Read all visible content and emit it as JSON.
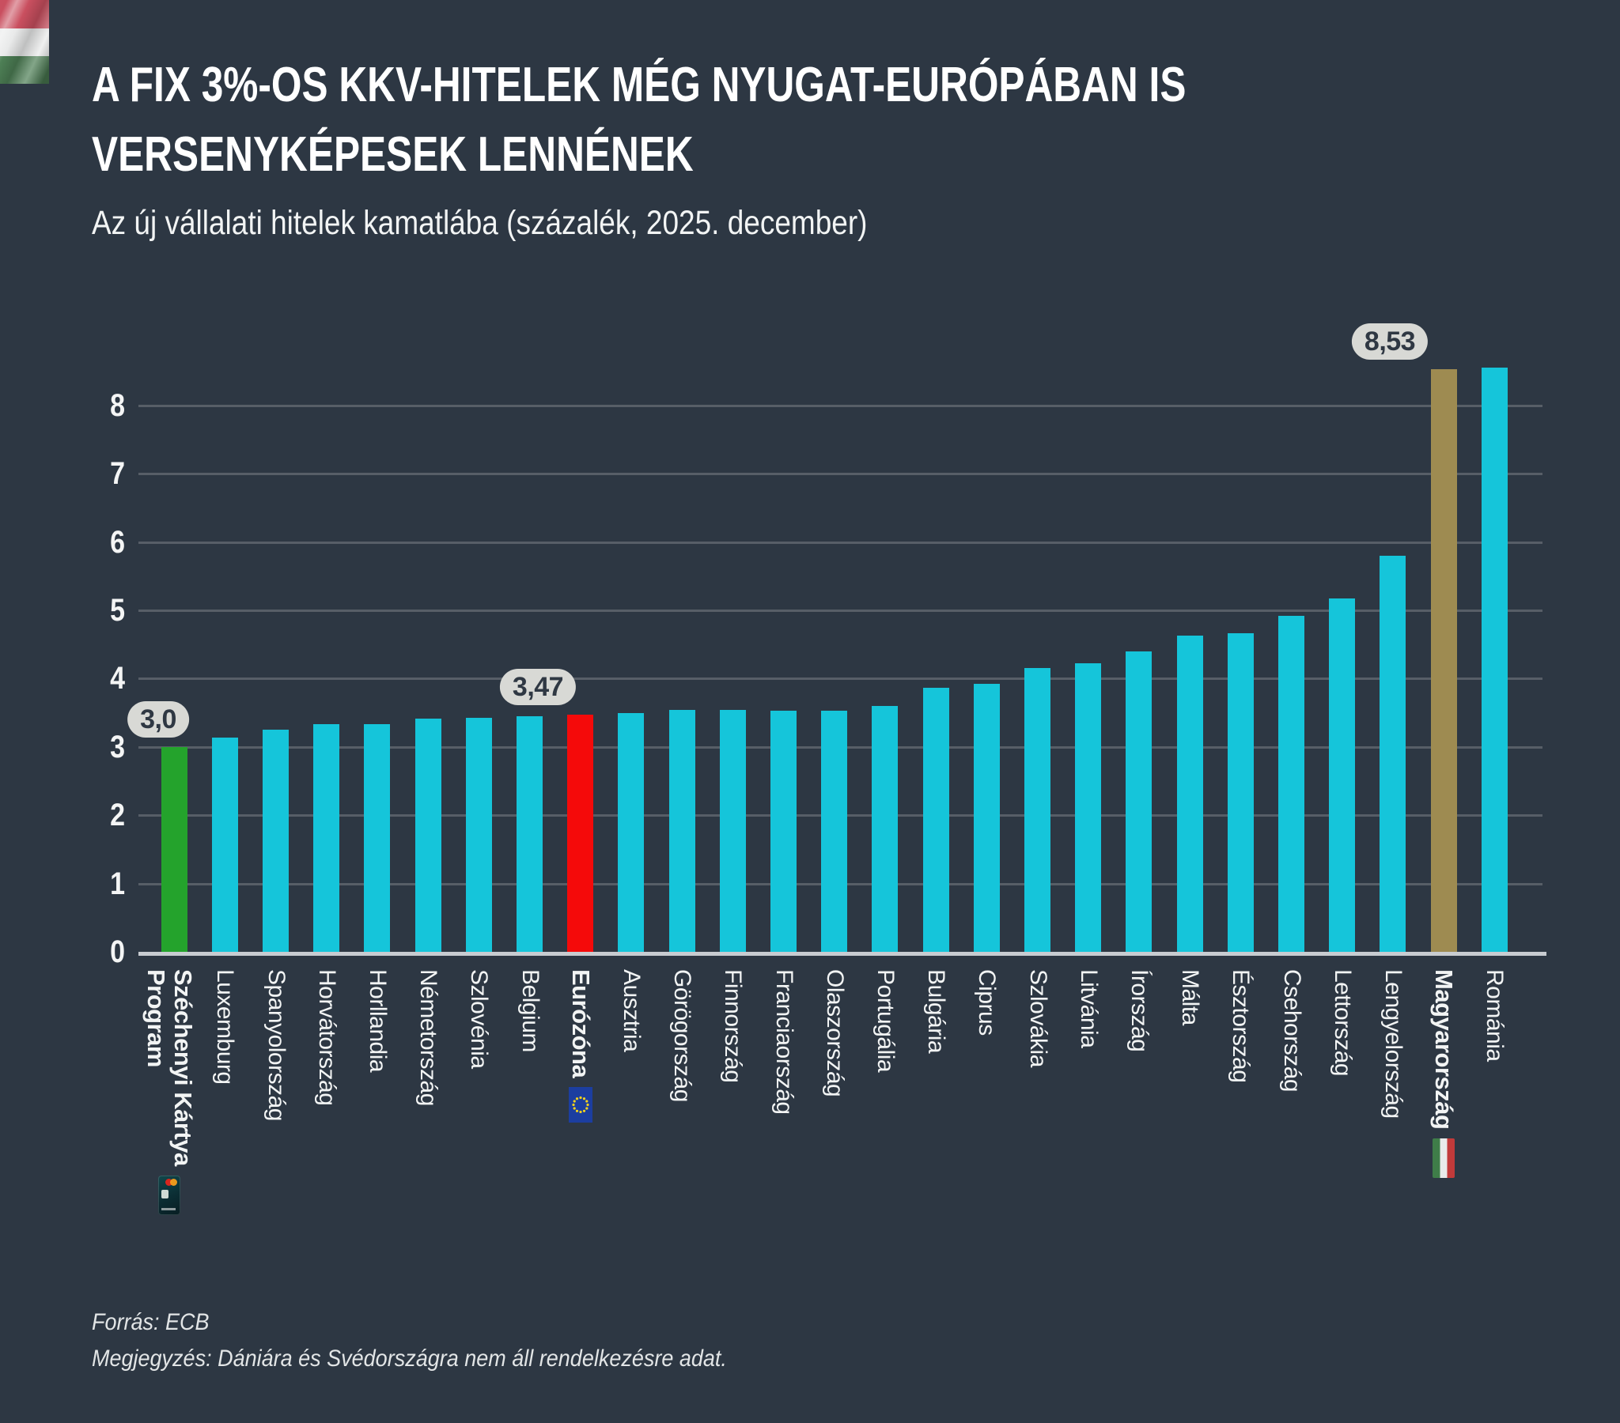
{
  "logo": {
    "name": "hungary-flag-logo"
  },
  "header": {
    "title_line1": "A FIX 3%-OS KKV-HITELEK MÉG NYUGAT-EURÓPÁBAN IS",
    "title_line2": "VERSENYKÉPESEK LENNÉNEK",
    "subtitle": "Az új vállalati hitelek kamatlába (százalék, 2025. december)"
  },
  "footer": {
    "source": "Forrás: ECB",
    "note": "Megjegyzés: Dániára és Svédországra nem áll rendelkezésre adat."
  },
  "chart_data": {
    "type": "bar",
    "title": "A fix 3%-os KKV-hitelek még Nyugat-Európában is versenyképesek lennének",
    "subtitle": "Az új vállalati hitelek kamatlába (százalék, 2025. december)",
    "xlabel": "",
    "ylabel": "",
    "unit": "percent",
    "ylim": [
      0,
      8.6
    ],
    "yticks": [
      0,
      1,
      2,
      3,
      4,
      5,
      6,
      7,
      8
    ],
    "grid": true,
    "legend": false,
    "background": "#2d3743",
    "palette": {
      "cyan": "#15c5da",
      "green": "#24a32c",
      "red": "#f50a0a",
      "gold": "#9e8b51",
      "badge_bg": "#d8d9d5",
      "badge_text": "#2f3843",
      "gridline": "#575e67",
      "axis": "#c8ccd1"
    },
    "categories": [
      "Széchenyi Kártya Program",
      "Luxemburg",
      "Spanyolország",
      "Horvátország",
      "Horllandia",
      "Németország",
      "Szlovénia",
      "Belgium",
      "Eurózóna",
      "Ausztria",
      "Görögország",
      "Finnország",
      "Franciaország",
      "Olaszország",
      "Portugália",
      "Bulgária",
      "Ciprus",
      "Szlovákia",
      "Litvánia",
      "Írország",
      "Málta",
      "Észtország",
      "Csehország",
      "Lettország",
      "Lengyelország",
      "Magyarország",
      "Románia"
    ],
    "values": [
      3.0,
      3.14,
      3.25,
      3.33,
      3.33,
      3.41,
      3.43,
      3.45,
      3.47,
      3.49,
      3.54,
      3.54,
      3.53,
      3.53,
      3.6,
      3.87,
      3.92,
      4.15,
      4.22,
      4.4,
      4.63,
      4.66,
      4.92,
      5.17,
      5.8,
      8.53,
      8.55
    ],
    "bars": [
      {
        "label": "Széchenyi Kártya\nProgram",
        "value": 3.0,
        "color": "green",
        "bold": true,
        "badge": "3,0",
        "icon": "szechenyi-card"
      },
      {
        "label": "Luxemburg",
        "value": 3.14,
        "color": "cyan",
        "bold": false,
        "badge": null,
        "icon": null
      },
      {
        "label": "Spanyolország",
        "value": 3.25,
        "color": "cyan",
        "bold": false,
        "badge": null,
        "icon": null
      },
      {
        "label": "Horvátország",
        "value": 3.33,
        "color": "cyan",
        "bold": false,
        "badge": null,
        "icon": null
      },
      {
        "label": "Horllandia",
        "value": 3.33,
        "color": "cyan",
        "bold": false,
        "badge": null,
        "icon": null
      },
      {
        "label": "Németország",
        "value": 3.41,
        "color": "cyan",
        "bold": false,
        "badge": null,
        "icon": null
      },
      {
        "label": "Szlovénia",
        "value": 3.43,
        "color": "cyan",
        "bold": false,
        "badge": null,
        "icon": null
      },
      {
        "label": "Belgium",
        "value": 3.45,
        "color": "cyan",
        "bold": false,
        "badge": null,
        "icon": null
      },
      {
        "label": "Eurózóna",
        "value": 3.47,
        "color": "red",
        "bold": true,
        "badge": "3,47",
        "icon": "eu-flag"
      },
      {
        "label": "Ausztria",
        "value": 3.49,
        "color": "cyan",
        "bold": false,
        "badge": null,
        "icon": null
      },
      {
        "label": "Görögország",
        "value": 3.54,
        "color": "cyan",
        "bold": false,
        "badge": null,
        "icon": null
      },
      {
        "label": "Finnország",
        "value": 3.54,
        "color": "cyan",
        "bold": false,
        "badge": null,
        "icon": null
      },
      {
        "label": "Franciaország",
        "value": 3.53,
        "color": "cyan",
        "bold": false,
        "badge": null,
        "icon": null
      },
      {
        "label": "Olaszország",
        "value": 3.53,
        "color": "cyan",
        "bold": false,
        "badge": null,
        "icon": null
      },
      {
        "label": "Portugália",
        "value": 3.6,
        "color": "cyan",
        "bold": false,
        "badge": null,
        "icon": null
      },
      {
        "label": "Bulgária",
        "value": 3.87,
        "color": "cyan",
        "bold": false,
        "badge": null,
        "icon": null
      },
      {
        "label": "Ciprus",
        "value": 3.92,
        "color": "cyan",
        "bold": false,
        "badge": null,
        "icon": null
      },
      {
        "label": "Szlovákia",
        "value": 4.15,
        "color": "cyan",
        "bold": false,
        "badge": null,
        "icon": null
      },
      {
        "label": "Litvánia",
        "value": 4.22,
        "color": "cyan",
        "bold": false,
        "badge": null,
        "icon": null
      },
      {
        "label": "Írország",
        "value": 4.4,
        "color": "cyan",
        "bold": false,
        "badge": null,
        "icon": null
      },
      {
        "label": "Málta",
        "value": 4.63,
        "color": "cyan",
        "bold": false,
        "badge": null,
        "icon": null
      },
      {
        "label": "Észtország",
        "value": 4.66,
        "color": "cyan",
        "bold": false,
        "badge": null,
        "icon": null
      },
      {
        "label": "Csehország",
        "value": 4.92,
        "color": "cyan",
        "bold": false,
        "badge": null,
        "icon": null
      },
      {
        "label": "Lettország",
        "value": 5.17,
        "color": "cyan",
        "bold": false,
        "badge": null,
        "icon": null
      },
      {
        "label": "Lengyelország",
        "value": 5.8,
        "color": "cyan",
        "bold": false,
        "badge": null,
        "icon": null
      },
      {
        "label": "Magyarország",
        "value": 8.53,
        "color": "gold",
        "bold": true,
        "badge": "8,53",
        "icon": "hungary-flag"
      },
      {
        "label": "Románia",
        "value": 8.55,
        "color": "cyan",
        "bold": false,
        "badge": null,
        "icon": null
      }
    ],
    "annotations": [
      {
        "category": "Széchenyi Kártya Program",
        "label": "3,0"
      },
      {
        "category": "Eurózóna",
        "label": "3,47"
      },
      {
        "category": "Magyarország",
        "label": "8,53"
      }
    ]
  }
}
